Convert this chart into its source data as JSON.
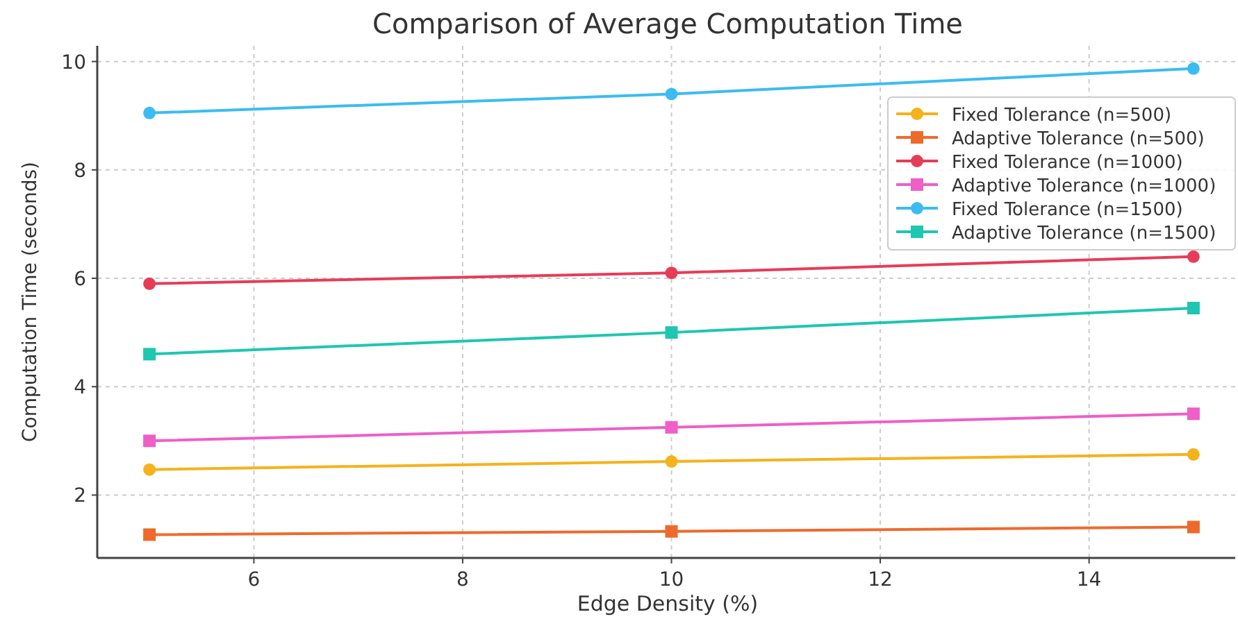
{
  "chart_data": {
    "type": "line",
    "title": "Comparison of Average Computation Time",
    "xlabel": "Edge Density (%)",
    "ylabel": "Computation Time (seconds)",
    "x": [
      5,
      10,
      15
    ],
    "xlim": [
      4.5,
      15.4
    ],
    "xticks": [
      6,
      8,
      10,
      12,
      14
    ],
    "ylim": [
      0.84,
      10.29
    ],
    "yticks": [
      2,
      4,
      6,
      8,
      10
    ],
    "grid": true,
    "legend": "top right",
    "series": [
      {
        "name": "Fixed Tolerance (n=500)",
        "color": "#f5b21b",
        "marker": "circle",
        "values": [
          2.47,
          2.62,
          2.75
        ]
      },
      {
        "name": "Adaptive Tolerance (n=500)",
        "color": "#ee6a2c",
        "marker": "square",
        "values": [
          1.27,
          1.33,
          1.41
        ]
      },
      {
        "name": "Fixed Tolerance (n=1000)",
        "color": "#e63c58",
        "marker": "circle",
        "values": [
          5.9,
          6.1,
          6.4
        ]
      },
      {
        "name": "Adaptive Tolerance (n=1000)",
        "color": "#ee5fc8",
        "marker": "square",
        "values": [
          3.0,
          3.25,
          3.5
        ]
      },
      {
        "name": "Fixed Tolerance (n=1500)",
        "color": "#3bbcf0",
        "marker": "circle",
        "values": [
          9.05,
          9.4,
          9.87
        ]
      },
      {
        "name": "Adaptive Tolerance (n=1500)",
        "color": "#1fc6b0",
        "marker": "square",
        "values": [
          4.6,
          5.0,
          5.45
        ]
      }
    ]
  }
}
